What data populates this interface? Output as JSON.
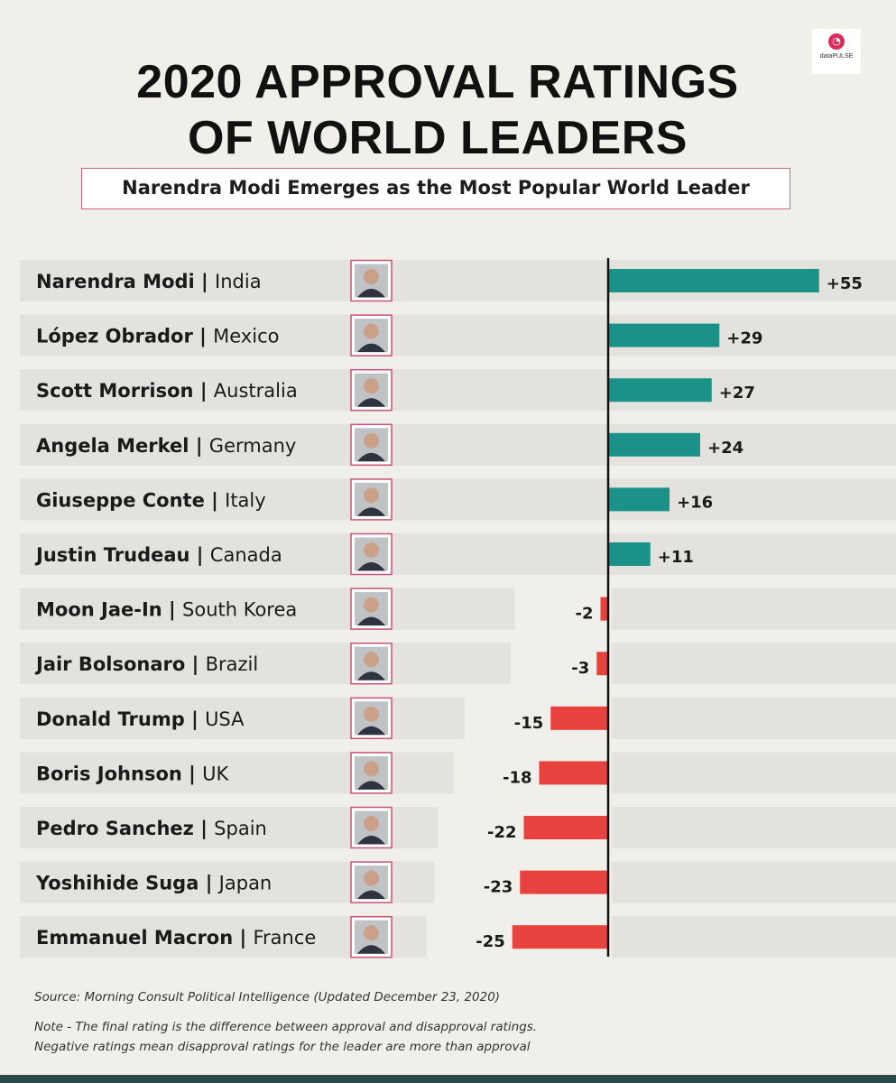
{
  "logo": {
    "text": "dataPULSE",
    "mark_color": "#d6305a"
  },
  "header": {
    "title_line1": "2020 APPROVAL RATINGS",
    "title_line2": "OF WORLD LEADERS",
    "subtitle": "Narendra Modi Emerges as the Most Popular World Leader"
  },
  "chart_data": {
    "type": "bar",
    "orientation": "horizontal",
    "title": "2020 APPROVAL RATINGS OF WORLD LEADERS",
    "subtitle": "Narendra Modi Emerges as the Most Popular World Leader",
    "categories": [
      {
        "name": "Narendra Modi",
        "country": "India"
      },
      {
        "name": "López Obrador",
        "country": "Mexico"
      },
      {
        "name": "Scott Morrison",
        "country": "Australia"
      },
      {
        "name": "Angela Merkel",
        "country": "Germany"
      },
      {
        "name": "Giuseppe Conte",
        "country": "Italy"
      },
      {
        "name": "Justin Trudeau",
        "country": "Canada"
      },
      {
        "name": "Moon Jae-In",
        "country": "South Korea"
      },
      {
        "name": "Jair Bolsonaro",
        "country": "Brazil"
      },
      {
        "name": "Donald Trump",
        "country": "USA"
      },
      {
        "name": "Boris Johnson",
        "country": "UK"
      },
      {
        "name": "Pedro Sanchez",
        "country": "Spain"
      },
      {
        "name": "Yoshihide Suga",
        "country": "Japan"
      },
      {
        "name": "Emmanuel Macron",
        "country": "France"
      }
    ],
    "values": [
      55,
      29,
      27,
      24,
      16,
      11,
      -2,
      -3,
      -15,
      -18,
      -22,
      -23,
      -25
    ],
    "value_labels": [
      "+55",
      "+29",
      "+27",
      "+24",
      "+16",
      "+11",
      "-2",
      "-3",
      "-15",
      "-18",
      "-22",
      "-23",
      "-25"
    ],
    "separator": "|",
    "colors": {
      "positive": "#1a9288",
      "negative": "#e8423f",
      "row_band": "#e3e2de",
      "axis": "#111111"
    },
    "grid": false,
    "legend": "none"
  },
  "footer": {
    "source": "Source: Morning Consult Political Intelligence (Updated December 23, 2020)",
    "note_line1": "Note - The final rating is the difference between approval and disapproval ratings.",
    "note_line2": "Negative ratings mean disapproval ratings for the leader are more than approval"
  },
  "colors": {
    "background": "#f0efea",
    "bottom_bar": "#2b4a47",
    "subtitle_border": "#d06484"
  }
}
